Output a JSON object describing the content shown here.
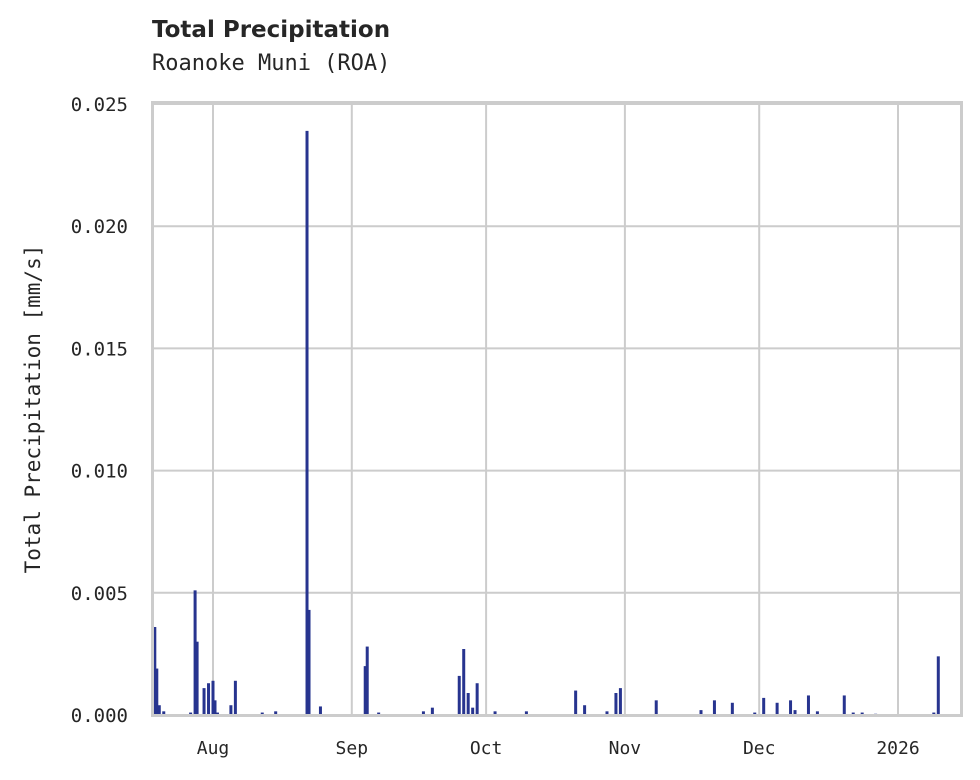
{
  "header": {
    "title": "Total Precipitation",
    "subtitle": "Roanoke Muni (ROA)"
  },
  "colors": {
    "bar": "#27348f",
    "grid": "#cccccc",
    "frame": "#cccccc",
    "text": "#262626"
  },
  "chart_data": {
    "type": "bar",
    "title": "Total Precipitation",
    "subtitle": "Roanoke Muni (ROA)",
    "xlabel": "",
    "ylabel": "Total Precipitation [mm/s]",
    "ylim": [
      0,
      0.025
    ],
    "yticks": [
      "0.000",
      "0.005",
      "0.010",
      "0.015",
      "0.020",
      "0.025"
    ],
    "xticks": [
      "Aug",
      "Sep",
      "Oct",
      "Nov",
      "Dec",
      "2026"
    ],
    "xrange": [
      "2025-07-18",
      "2026-01-14"
    ],
    "grid": true,
    "legend": null,
    "series": [
      {
        "name": "Total Precipitation",
        "x": [
          "2025-07-19",
          "2025-07-19",
          "2025-07-20",
          "2025-07-21",
          "2025-07-27",
          "2025-07-28",
          "2025-07-28",
          "2025-07-30",
          "2025-07-31",
          "2025-08-01",
          "2025-08-01",
          "2025-08-02",
          "2025-08-05",
          "2025-08-06",
          "2025-08-12",
          "2025-08-15",
          "2025-08-22",
          "2025-08-22",
          "2025-08-25",
          "2025-09-04",
          "2025-09-04",
          "2025-09-07",
          "2025-09-17",
          "2025-09-19",
          "2025-09-25",
          "2025-09-26",
          "2025-09-27",
          "2025-09-28",
          "2025-09-29",
          "2025-10-03",
          "2025-10-10",
          "2025-10-21",
          "2025-10-23",
          "2025-10-28",
          "2025-10-30",
          "2025-10-31",
          "2025-11-08",
          "2025-11-18",
          "2025-11-21",
          "2025-11-25",
          "2025-11-30",
          "2025-12-02",
          "2025-12-05",
          "2025-12-08",
          "2025-12-09",
          "2025-12-12",
          "2025-12-14",
          "2025-12-20",
          "2025-12-22",
          "2025-12-24",
          "2025-12-27",
          "2026-01-09",
          "2026-01-10"
        ],
        "values": [
          0.0036,
          0.0019,
          0.0004,
          0.00015,
          0.0001,
          0.0051,
          0.003,
          0.0011,
          0.0013,
          0.0014,
          0.0006,
          0.0001,
          0.0004,
          0.0014,
          0.0001,
          0.00015,
          0.0239,
          0.0043,
          0.00035,
          0.002,
          0.0028,
          0.0001,
          0.00015,
          0.0003,
          0.0016,
          0.0027,
          0.0009,
          0.0003,
          0.0013,
          0.00015,
          0.00015,
          0.001,
          0.0004,
          0.00015,
          0.0009,
          0.0011,
          0.0006,
          0.0002,
          0.0006,
          0.0005,
          0.0001,
          0.0007,
          0.0005,
          0.0006,
          0.0002,
          0.0008,
          0.00015,
          0.0008,
          0.0001,
          0.0001,
          5e-05,
          0.0001,
          0.0024
        ]
      }
    ]
  }
}
